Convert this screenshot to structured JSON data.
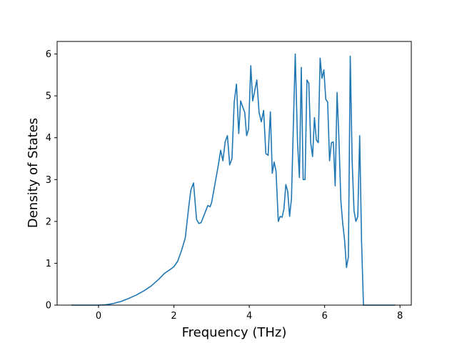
{
  "chart_data": {
    "type": "line",
    "title": "",
    "xlabel": "Frequency (THz)",
    "ylabel": "Density of States",
    "xlim": [
      -1.1,
      8.3
    ],
    "ylim": [
      0,
      6.3
    ],
    "xticks": [
      0,
      2,
      4,
      6,
      8
    ],
    "yticks": [
      0,
      1,
      2,
      3,
      4,
      5,
      6
    ],
    "xtick_labels": [
      "0",
      "2",
      "4",
      "6",
      "8"
    ],
    "ytick_labels": [
      "0",
      "1",
      "2",
      "3",
      "4",
      "5",
      "6"
    ],
    "grid": false,
    "legend": null,
    "line_color": "#1f77b4",
    "series": [
      {
        "x": [
          -0.72,
          0.0,
          0.2,
          0.4,
          0.6,
          0.8,
          1.0,
          1.2,
          1.4,
          1.6,
          1.75,
          1.9,
          2.0,
          2.1,
          2.2,
          2.3,
          2.4,
          2.45,
          2.52,
          2.6,
          2.66,
          2.72,
          2.8,
          2.9,
          2.96,
          3.0,
          3.06,
          3.12,
          3.18,
          3.24,
          3.3,
          3.36,
          3.42,
          3.48,
          3.54,
          3.6,
          3.66,
          3.72,
          3.77,
          3.82,
          3.88,
          3.93,
          3.98,
          4.04,
          4.09,
          4.14,
          4.2,
          4.26,
          4.32,
          4.38,
          4.44,
          4.5,
          4.56,
          4.61,
          4.66,
          4.71,
          4.77,
          4.82,
          4.87,
          4.92,
          4.97,
          5.02,
          5.07,
          5.12,
          5.17,
          5.22,
          5.28,
          5.33,
          5.38,
          5.43,
          5.48,
          5.53,
          5.58,
          5.63,
          5.68,
          5.73,
          5.78,
          5.83,
          5.88,
          5.93,
          5.98,
          6.03,
          6.08,
          6.13,
          6.18,
          6.23,
          6.28,
          6.33,
          6.38,
          6.43,
          6.48,
          6.53,
          6.58,
          6.63,
          6.68,
          6.73,
          6.78,
          6.83,
          6.88,
          6.93,
          6.98,
          7.03,
          7.08,
          7.13,
          7.18,
          7.25,
          7.5,
          7.88
        ],
        "y": [
          0.0,
          0.0,
          0.01,
          0.04,
          0.09,
          0.16,
          0.24,
          0.34,
          0.46,
          0.62,
          0.76,
          0.85,
          0.92,
          1.05,
          1.3,
          1.6,
          2.4,
          2.75,
          2.92,
          2.05,
          1.95,
          1.97,
          2.15,
          2.38,
          2.35,
          2.45,
          2.75,
          3.05,
          3.35,
          3.7,
          3.45,
          3.9,
          4.05,
          3.35,
          3.5,
          4.85,
          5.28,
          4.1,
          4.88,
          4.75,
          4.6,
          4.05,
          4.2,
          5.72,
          4.88,
          5.1,
          5.38,
          4.6,
          4.38,
          4.65,
          3.62,
          3.58,
          4.62,
          3.15,
          3.42,
          3.2,
          2.0,
          2.12,
          2.1,
          2.3,
          2.88,
          2.72,
          2.12,
          2.55,
          4.3,
          6.0,
          3.9,
          3.05,
          5.68,
          3.0,
          3.0,
          5.38,
          5.3,
          3.88,
          3.55,
          4.48,
          3.95,
          3.88,
          5.9,
          5.42,
          5.62,
          4.92,
          4.85,
          3.45,
          3.88,
          3.9,
          2.85,
          5.08,
          3.95,
          2.5,
          1.95,
          1.55,
          0.9,
          1.15,
          5.95,
          3.45,
          2.25,
          2.0,
          2.12,
          4.05,
          1.52,
          0.0,
          0.0,
          0.0,
          0.0,
          0.0,
          0.0,
          0.0
        ]
      }
    ]
  }
}
